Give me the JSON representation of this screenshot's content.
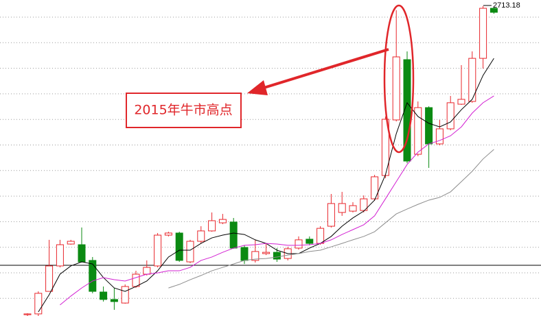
{
  "chart_data": {
    "type": "candlestick",
    "open": [
      808,
      813,
      952,
      1109,
      1244,
      1240,
      1143,
      948,
      902,
      880,
      982,
      1058,
      1109,
      1299,
      1312,
      1134,
      1261,
      1325,
      1375,
      1380,
      1223,
      1143,
      1185,
      1193,
      1155,
      1219,
      1274,
      1248,
      1354,
      1439,
      1447,
      1451,
      1523,
      1667,
      2010,
      2382,
      1798,
      2086,
      1862,
      1955,
      2107,
      2124,
      2390,
      2699
    ],
    "high": [
      817,
      952,
      1270,
      1270,
      1270,
      1346,
      1164,
      982,
      973,
      995,
      1079,
      1143,
      1312,
      1320,
      1320,
      1270,
      1354,
      1439,
      1430,
      1405,
      1236,
      1270,
      1248,
      1219,
      1227,
      1291,
      1291,
      1354,
      1553,
      1566,
      1502,
      1544,
      1671,
      2031,
      2687,
      2433,
      2124,
      2094,
      2010,
      2158,
      2348,
      2433,
      2713.18,
      2708
    ],
    "low": [
      800,
      800,
      952,
      1100,
      1240,
      1130,
      940,
      889,
      838,
      876,
      973,
      1050,
      1100,
      1291,
      1134,
      1126,
      1248,
      1320,
      1367,
      1215,
      1121,
      1130,
      1176,
      1134,
      1143,
      1210,
      1236,
      1240,
      1346,
      1418,
      1439,
      1439,
      1511,
      1650,
      2001,
      1743,
      1786,
      1714,
      1853,
      1946,
      2103,
      2116,
      2327,
      2665
    ],
    "close": [
      813,
      940,
      1109,
      1240,
      1261,
      1134,
      952,
      902,
      889,
      982,
      1058,
      1100,
      1299,
      1312,
      1143,
      1261,
      1325,
      1388,
      1396,
      1219,
      1143,
      1198,
      1193,
      1151,
      1215,
      1270,
      1248,
      1341,
      1494,
      1494,
      1481,
      1523,
      1659,
      2014,
      2399,
      1756,
      2086,
      1862,
      1955,
      2116,
      2137,
      2390,
      2699,
      2674
    ],
    "up_color": "#e8252a",
    "down_color": "#0b8a12",
    "series": [
      {
        "color": "#000000",
        "values": [
          null,
          825,
          931,
          1058,
          1109,
          1134,
          1121,
          1037,
          973,
          952,
          982,
          1016,
          1079,
          1164,
          1206,
          1206,
          1248,
          1282,
          1299,
          1312,
          1303,
          1270,
          1248,
          1206,
          1185,
          1185,
          1219,
          1248,
          1291,
          1354,
          1405,
          1447,
          1515,
          1671,
          1925,
          2116,
          2031,
          1989,
          1967,
          1997,
          2073,
          2137,
          2285,
          2390
        ]
      },
      {
        "color": "#d21fd2",
        "values": [
          null,
          null,
          null,
          868,
          923,
          973,
          1016,
          1037,
          1024,
          1016,
          1037,
          1058,
          1066,
          1079,
          1079,
          1100,
          1143,
          1164,
          1193,
          1219,
          1236,
          1240,
          1248,
          1244,
          1236,
          1236,
          1240,
          1248,
          1270,
          1303,
          1333,
          1363,
          1418,
          1523,
          1629,
          1735,
          1811,
          1862,
          1883,
          1912,
          1967,
          2052,
          2116,
          2158
        ]
      },
      {
        "color": "#8c8c8c",
        "values": [
          null,
          null,
          null,
          null,
          null,
          null,
          null,
          null,
          null,
          null,
          null,
          null,
          null,
          973,
          995,
          1024,
          1050,
          1079,
          1100,
          1121,
          1143,
          1151,
          1155,
          1164,
          1176,
          1185,
          1198,
          1206,
          1227,
          1248,
          1270,
          1291,
          1320,
          1375,
          1430,
          1460,
          1489,
          1515,
          1532,
          1566,
          1629,
          1693,
          1769,
          1828
        ]
      }
    ],
    "reference_line": 1113,
    "ylim": [
      800,
      2750
    ],
    "grid": true,
    "annotation": "2015年牛市高点"
  }
}
